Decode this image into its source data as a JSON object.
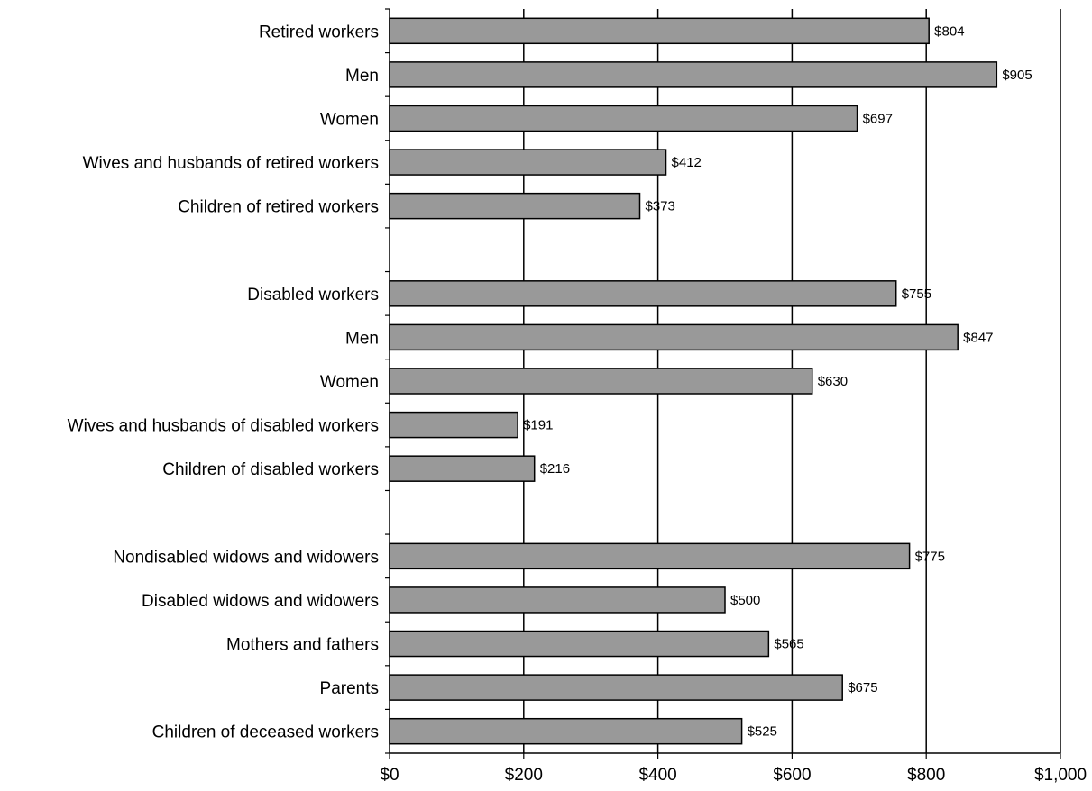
{
  "chart_data": {
    "type": "bar",
    "orientation": "horizontal",
    "title": "",
    "xlabel": "",
    "ylabel": "",
    "xlim": [
      0,
      1000
    ],
    "x_ticks": [
      0,
      200,
      400,
      600,
      800,
      1000
    ],
    "x_tick_labels": [
      "$0",
      "$200",
      "$400",
      "$600",
      "$800",
      "$1,000"
    ],
    "grid": "vertical",
    "legend": "none",
    "bar_color": "#999999",
    "bar_edge_color": "#000000",
    "categories": [
      "Retired workers",
      "Men",
      "Women",
      "Wives and husbands of retired workers",
      "Children of retired workers",
      "",
      "Disabled workers",
      "Men",
      "Women",
      "Wives and husbands of disabled workers",
      "Children of disabled workers",
      "",
      "Nondisabled widows and widowers",
      "Disabled widows and widowers",
      "Mothers and fathers",
      "Parents",
      "Children of deceased workers"
    ],
    "values": [
      804,
      905,
      697,
      412,
      373,
      null,
      755,
      847,
      630,
      191,
      216,
      null,
      775,
      500,
      565,
      675,
      525
    ],
    "value_labels": [
      "$804",
      "$905",
      "$697",
      "$412",
      "$373",
      "",
      "$755",
      "$847",
      "$630",
      "$191",
      "$216",
      "",
      "$775",
      "$500",
      "$565",
      "$675",
      "$525"
    ]
  }
}
